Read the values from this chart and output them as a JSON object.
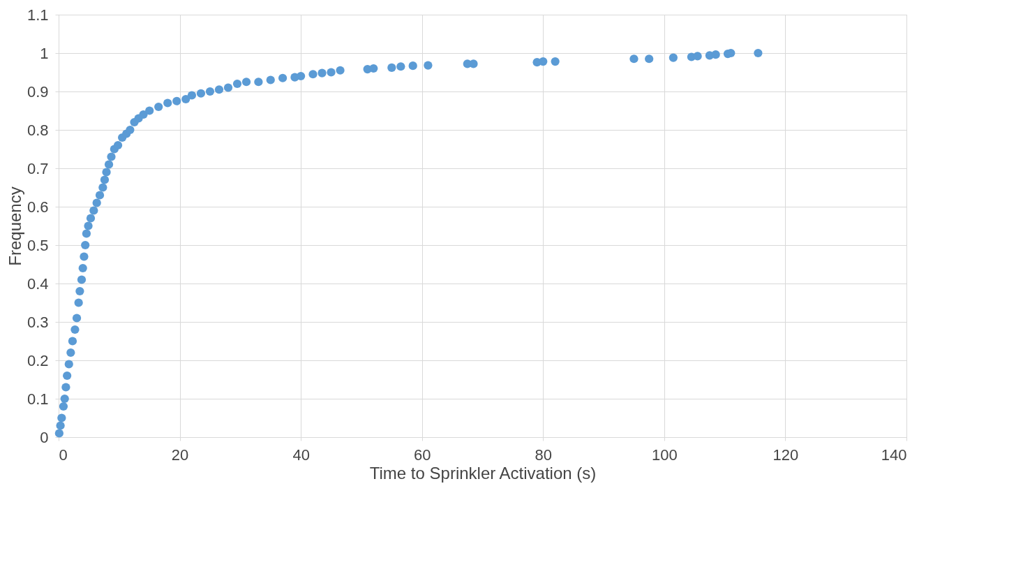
{
  "chart_data": {
    "type": "scatter",
    "xlabel": "Time to Sprinkler Activation (s)",
    "ylabel": "Frequency",
    "xlim": [
      0,
      140
    ],
    "xticks": [
      0,
      20,
      40,
      60,
      80,
      100,
      120,
      140
    ],
    "ylim": [
      0,
      1.1
    ],
    "yticks": [
      0,
      0.1,
      0.2,
      0.3,
      0.4,
      0.5,
      0.6,
      0.7,
      0.8,
      0.9,
      1,
      1.1
    ],
    "grid": true,
    "marker": "circle",
    "legend": false,
    "series": [
      {
        "color": "#5b9bd5",
        "x": [
          0.1,
          0.3,
          0.5,
          0.8,
          1,
          1.2,
          1.4,
          1.7,
          2,
          2.3,
          2.7,
          3,
          3.3,
          3.5,
          3.8,
          4,
          4.2,
          4.4,
          4.6,
          4.9,
          5.3,
          5.8,
          6.3,
          6.8,
          7.3,
          7.6,
          7.9,
          8.3,
          8.7,
          9.2,
          9.8,
          10.5,
          11.2,
          11.8,
          12.5,
          13.2,
          14,
          15,
          16.5,
          18,
          19.5,
          21,
          22,
          23.5,
          25,
          26.5,
          28,
          29.5,
          31,
          33,
          35,
          37,
          39,
          40,
          42,
          43.5,
          45,
          46.5,
          51,
          52,
          55,
          56.5,
          58.5,
          61,
          67.5,
          68.5,
          79,
          80,
          82,
          95,
          97.5,
          101.5,
          104.5,
          105.5,
          107.5,
          108.5,
          110.5,
          111,
          115.5
        ],
        "values": [
          0.01,
          0.03,
          0.05,
          0.08,
          0.1,
          0.13,
          0.16,
          0.19,
          0.22,
          0.25,
          0.28,
          0.31,
          0.35,
          0.38,
          0.41,
          0.44,
          0.47,
          0.5,
          0.53,
          0.55,
          0.57,
          0.59,
          0.61,
          0.63,
          0.65,
          0.67,
          0.69,
          0.71,
          0.73,
          0.75,
          0.76,
          0.78,
          0.79,
          0.8,
          0.82,
          0.83,
          0.84,
          0.85,
          0.86,
          0.87,
          0.875,
          0.88,
          0.89,
          0.895,
          0.9,
          0.905,
          0.91,
          0.92,
          0.925,
          0.925,
          0.93,
          0.935,
          0.937,
          0.94,
          0.945,
          0.948,
          0.95,
          0.955,
          0.958,
          0.96,
          0.962,
          0.965,
          0.967,
          0.968,
          0.972,
          0.972,
          0.976,
          0.978,
          0.978,
          0.985,
          0.985,
          0.988,
          0.99,
          0.992,
          0.994,
          0.996,
          0.998,
          1,
          1
        ]
      }
    ]
  }
}
